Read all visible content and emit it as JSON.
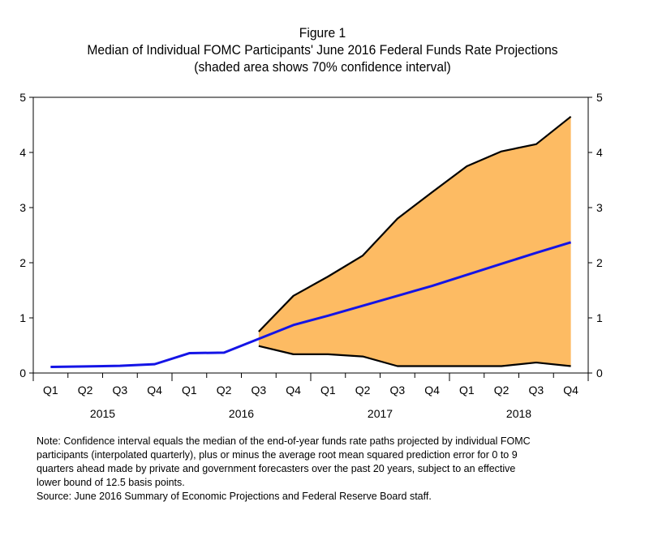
{
  "chart_data": {
    "type": "line",
    "title": "Figure 1",
    "subtitle": "Median of Individual FOMC Participants' June 2016 Federal Funds Rate Projections",
    "subtitle2": "(shaded area shows 70% confidence interval)",
    "xlabel": "",
    "ylabel": "",
    "ylim": [
      0,
      5
    ],
    "yticks": [
      "0",
      "1",
      "2",
      "3",
      "4",
      "5"
    ],
    "categories": [
      "Q1",
      "Q2",
      "Q3",
      "Q4",
      "Q1",
      "Q2",
      "Q3",
      "Q4",
      "Q1",
      "Q2",
      "Q3",
      "Q4",
      "Q1",
      "Q2",
      "Q3",
      "Q4"
    ],
    "year_labels": [
      {
        "label": "2015",
        "quarters": [
          0,
          3
        ]
      },
      {
        "label": "2016",
        "quarters": [
          4,
          7
        ]
      },
      {
        "label": "2017",
        "quarters": [
          8,
          11
        ]
      },
      {
        "label": "2018",
        "quarters": [
          12,
          15
        ]
      }
    ],
    "series": [
      {
        "name": "Median projection",
        "type": "line",
        "color": "#1414e6",
        "values": [
          0.11,
          0.12,
          0.13,
          0.16,
          0.36,
          0.37,
          0.62,
          0.87,
          1.04,
          1.22,
          1.4,
          1.58,
          1.78,
          1.98,
          2.18,
          2.37
        ]
      },
      {
        "name": "70% confidence interval upper bound",
        "type": "band-upper",
        "color": "#000000",
        "values": [
          null,
          null,
          null,
          null,
          null,
          null,
          0.75,
          1.4,
          1.75,
          2.13,
          2.8,
          3.28,
          3.75,
          4.02,
          4.15,
          4.65
        ]
      },
      {
        "name": "70% confidence interval lower bound",
        "type": "band-lower",
        "color": "#000000",
        "values": [
          null,
          null,
          null,
          null,
          null,
          null,
          0.49,
          0.34,
          0.34,
          0.3,
          0.125,
          0.125,
          0.125,
          0.125,
          0.19,
          0.125
        ]
      }
    ],
    "band_fill": "#fdbb63",
    "grid": false,
    "legend": "none",
    "dual_y_axis": true
  },
  "notes": [
    "Note:  Confidence interval equals the median of the end-of-year funds rate paths projected by individual FOMC",
    "participants (interpolated quarterly), plus or minus the average root mean squared prediction error for 0 to 9",
    "quarters ahead made by private and government forecasters over the past 20 years, subject to an effective",
    "lower bound of 12.5 basis points.",
    "Source:  June 2016 Summary of Economic Projections and Federal Reserve Board staff."
  ]
}
